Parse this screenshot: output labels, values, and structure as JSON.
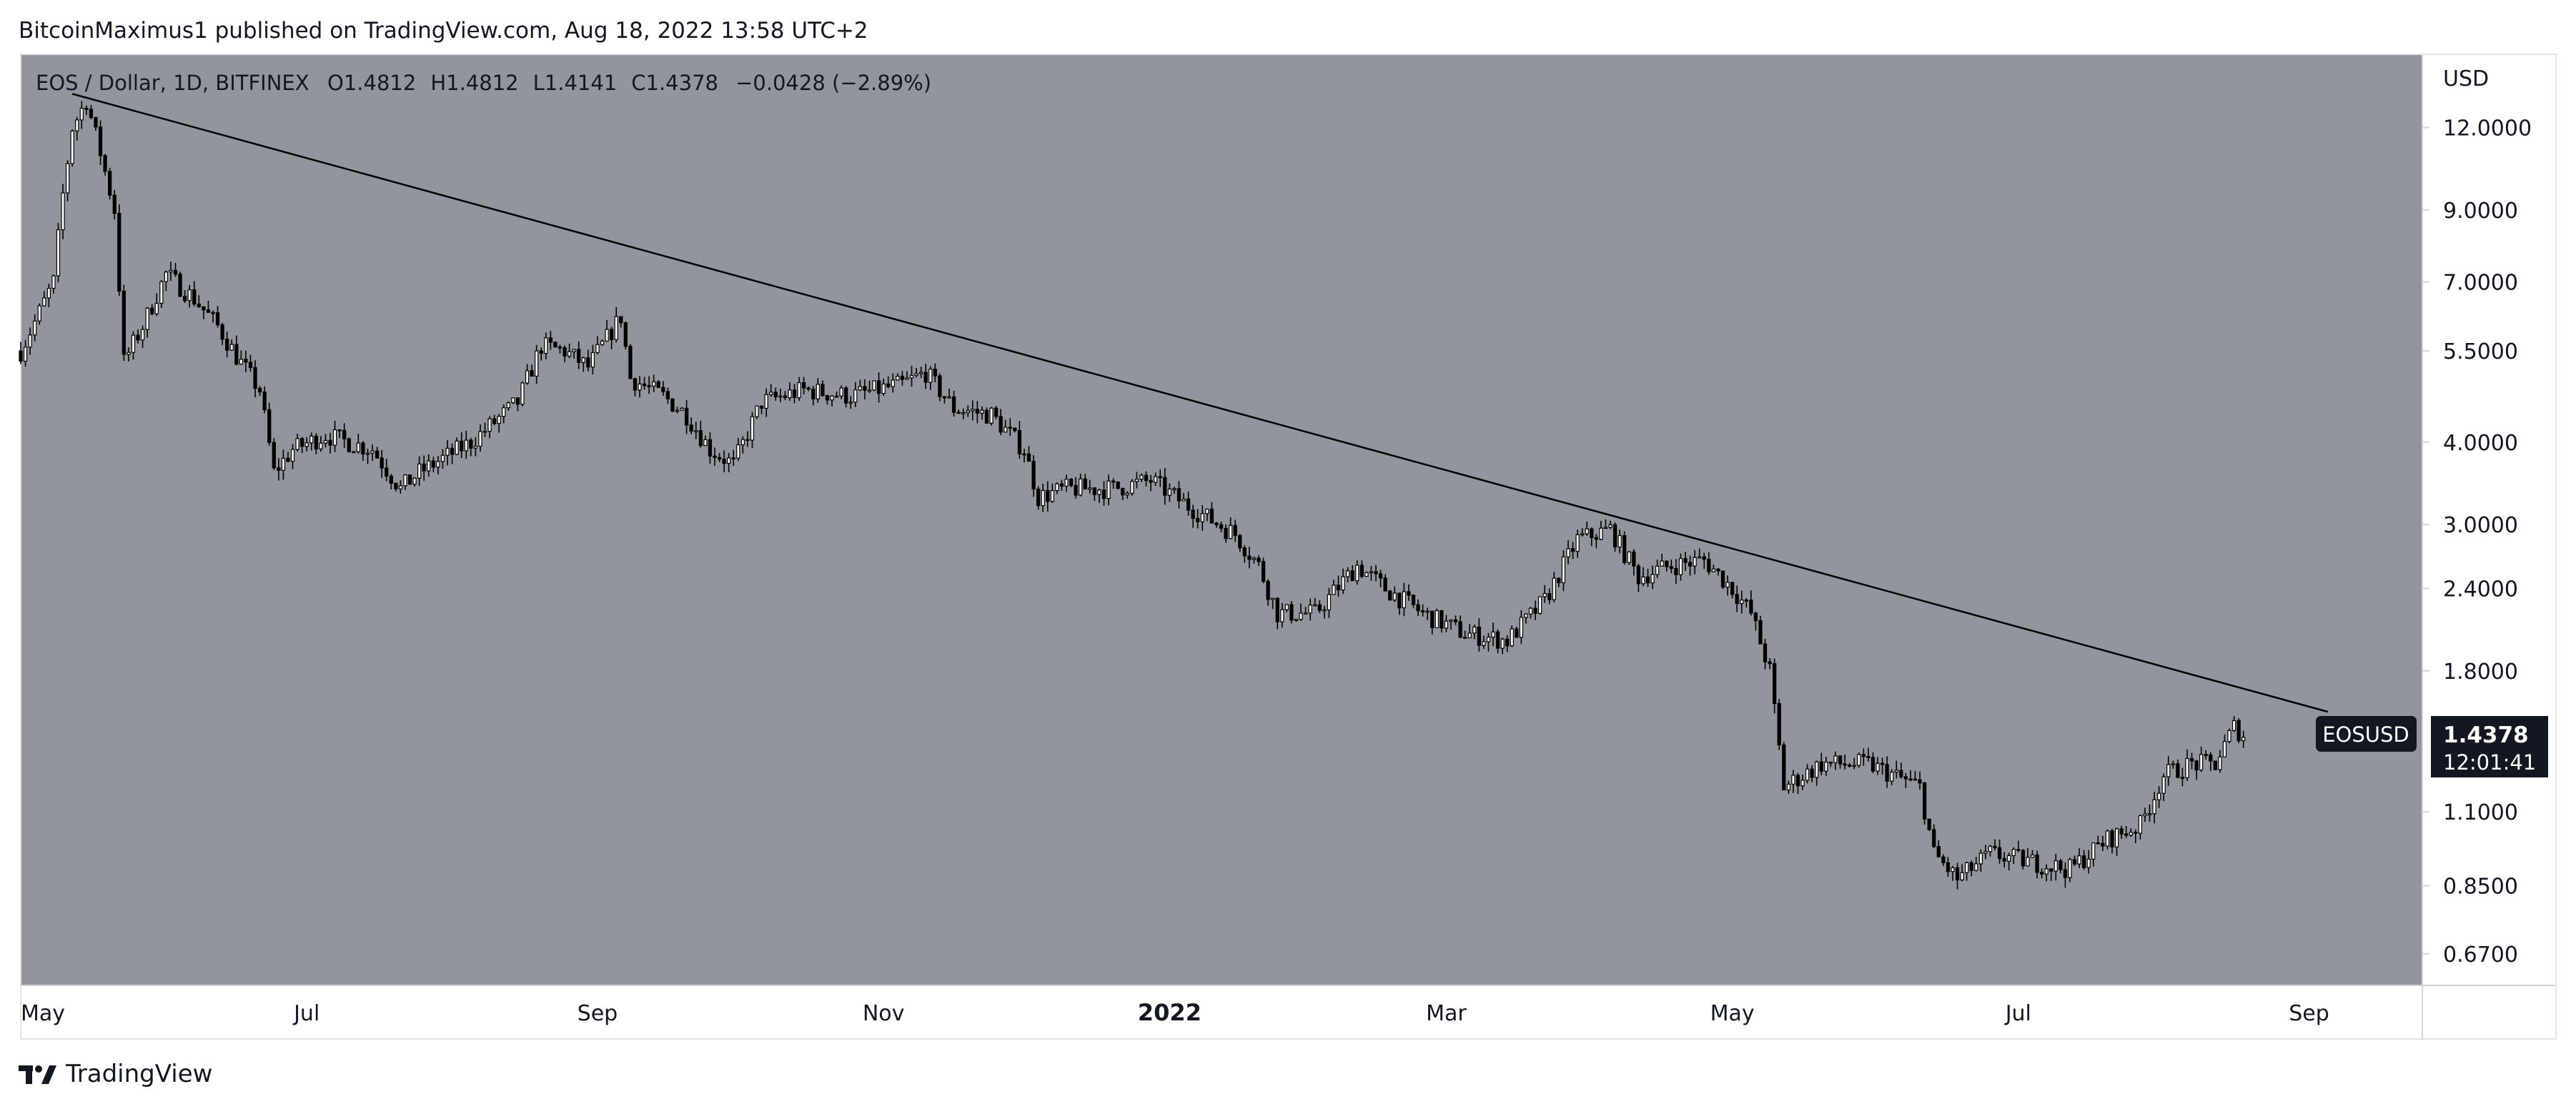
{
  "header": {
    "text": "BitcoinMaximus1 published on TradingView.com, Aug 18, 2022 13:58 UTC+2"
  },
  "legend": {
    "symbol": "EOS / Dollar, 1D, BITFINEX",
    "open_label": "O",
    "open": "1.4812",
    "high_label": "H",
    "high": "1.4812",
    "low_label": "L",
    "low": "1.4141",
    "close_label": "C",
    "close": "1.4378",
    "change": "−0.0428 (−2.89%)"
  },
  "price_scale": {
    "currency": "USD",
    "ticks": [
      "12.0000",
      "9.0000",
      "7.0000",
      "5.5000",
      "4.0000",
      "3.0000",
      "2.4000",
      "1.8000",
      "1.1000",
      "0.8500",
      "0.6700"
    ]
  },
  "time_axis": {
    "labels": [
      "May",
      "Jul",
      "Sep",
      "Nov",
      "2022",
      "Mar",
      "May",
      "Jul",
      "Sep"
    ],
    "bold": [
      false,
      false,
      false,
      false,
      true,
      false,
      false,
      false,
      false
    ]
  },
  "price_tag": {
    "symbol": "EOSUSD",
    "price": "1.4378",
    "countdown": "12:01:41"
  },
  "footer": {
    "brand": "TradingView"
  },
  "colors": {
    "plot_background": "#92959e",
    "candle": "#000000",
    "trendline": "#000000",
    "tag_background": "#131722",
    "tag_text": "#ffffff"
  },
  "chart_data": {
    "type": "candlestick",
    "symbol": "EOSUSD",
    "timeframe": "1D",
    "exchange": "BITFINEX",
    "x_range": [
      "2021-05-01",
      "2022-09-25"
    ],
    "y_scale": "log",
    "ylim": [
      0.6,
      15.5
    ],
    "price_path": [
      [
        "2021-05-01",
        5.5
      ],
      [
        "2021-05-05",
        6.3
      ],
      [
        "2021-05-08",
        7.0
      ],
      [
        "2021-05-10",
        9.5
      ],
      [
        "2021-05-12",
        12.0
      ],
      [
        "2021-05-15",
        13.2
      ],
      [
        "2021-05-18",
        11.0
      ],
      [
        "2021-05-21",
        9.0
      ],
      [
        "2021-05-23",
        5.3
      ],
      [
        "2021-05-27",
        6.0
      ],
      [
        "2021-06-01",
        7.2
      ],
      [
        "2021-06-07",
        6.6
      ],
      [
        "2021-06-12",
        6.0
      ],
      [
        "2021-06-16",
        5.4
      ],
      [
        "2021-06-21",
        4.8
      ],
      [
        "2021-06-24",
        3.6
      ],
      [
        "2021-06-28",
        3.9
      ],
      [
        "2021-07-05",
        4.1
      ],
      [
        "2021-07-15",
        3.9
      ],
      [
        "2021-07-21",
        3.4
      ],
      [
        "2021-07-25",
        3.6
      ],
      [
        "2021-08-05",
        4.0
      ],
      [
        "2021-08-15",
        4.6
      ],
      [
        "2021-08-20",
        5.6
      ],
      [
        "2021-08-25",
        5.5
      ],
      [
        "2021-08-30",
        5.2
      ],
      [
        "2021-09-06",
        6.2
      ],
      [
        "2021-09-08",
        5.0
      ],
      [
        "2021-09-15",
        4.7
      ],
      [
        "2021-09-20",
        4.4
      ],
      [
        "2021-09-25",
        3.9
      ],
      [
        "2021-09-30",
        3.7
      ],
      [
        "2021-10-06",
        4.6
      ],
      [
        "2021-10-15",
        4.8
      ],
      [
        "2021-10-25",
        4.7
      ],
      [
        "2021-11-05",
        4.9
      ],
      [
        "2021-11-10",
        5.1
      ],
      [
        "2021-11-16",
        4.5
      ],
      [
        "2021-11-24",
        4.4
      ],
      [
        "2021-12-01",
        3.9
      ],
      [
        "2021-12-04",
        3.3
      ],
      [
        "2021-12-10",
        3.4
      ],
      [
        "2021-12-20",
        3.4
      ],
      [
        "2021-12-28",
        3.5
      ],
      [
        "2022-01-05",
        3.2
      ],
      [
        "2022-01-15",
        2.9
      ],
      [
        "2022-01-20",
        2.6
      ],
      [
        "2022-01-24",
        2.2
      ],
      [
        "2022-02-01",
        2.2
      ],
      [
        "2022-02-10",
        2.6
      ],
      [
        "2022-02-16",
        2.4
      ],
      [
        "2022-02-24",
        2.2
      ],
      [
        "2022-03-05",
        2.05
      ],
      [
        "2022-03-14",
        2.0
      ],
      [
        "2022-03-22",
        2.3
      ],
      [
        "2022-03-29",
        2.85
      ],
      [
        "2022-04-05",
        2.95
      ],
      [
        "2022-04-11",
        2.5
      ],
      [
        "2022-04-18",
        2.6
      ],
      [
        "2022-04-25",
        2.65
      ],
      [
        "2022-05-01",
        2.4
      ],
      [
        "2022-05-05",
        2.2
      ],
      [
        "2022-05-09",
        1.8
      ],
      [
        "2022-05-12",
        1.2
      ],
      [
        "2022-05-20",
        1.3
      ],
      [
        "2022-05-30",
        1.3
      ],
      [
        "2022-06-10",
        1.2
      ],
      [
        "2022-06-13",
        0.95
      ],
      [
        "2022-06-18",
        0.87
      ],
      [
        "2022-06-25",
        0.95
      ],
      [
        "2022-07-05",
        0.92
      ],
      [
        "2022-07-12",
        0.9
      ],
      [
        "2022-07-20",
        1.0
      ],
      [
        "2022-07-27",
        1.05
      ],
      [
        "2022-08-01",
        1.25
      ],
      [
        "2022-08-07",
        1.3
      ],
      [
        "2022-08-12",
        1.3
      ],
      [
        "2022-08-16",
        1.48
      ],
      [
        "2022-08-18",
        1.4378
      ]
    ],
    "trendline": {
      "from": [
        "2021-05-12",
        13.5
      ],
      "to": [
        "2022-09-05",
        1.56
      ]
    }
  }
}
